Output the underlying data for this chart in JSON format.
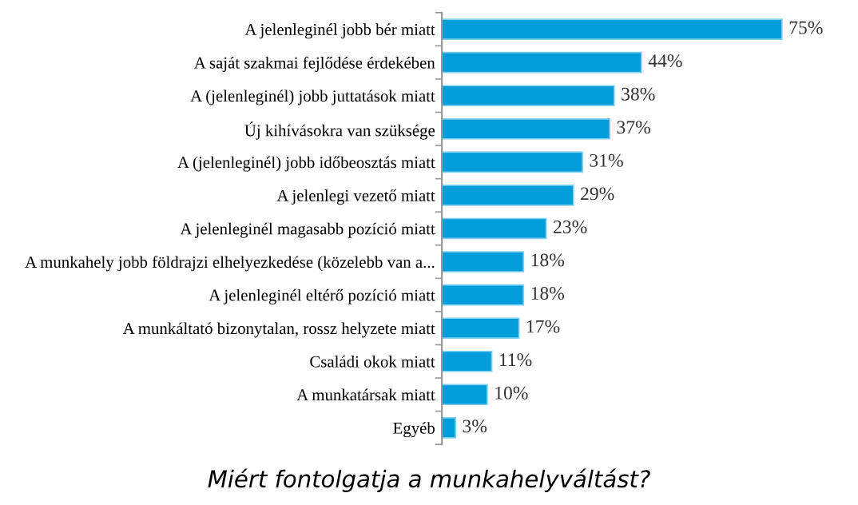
{
  "chart_data": {
    "type": "bar",
    "orientation": "horizontal",
    "title": "Miért fontolgatja a munkahelyváltást?",
    "categories": [
      "A jelenleginél jobb bér miatt",
      "A saját szakmai fejlődése érdekében",
      "A (jelenleginél) jobb juttatások miatt",
      "Új kihívásokra van szüksége",
      "A (jelenleginél) jobb időbeosztás miatt",
      "A jelenlegi vezető miatt",
      "A jelenleginél magasabb pozíció miatt",
      "A munkahely jobb földrajzi elhelyezkedése (közelebb van a...",
      "A jelenleginél eltérő pozíció miatt",
      "A munkáltató bizonytalan, rossz helyzete miatt",
      "Családi okok miatt",
      "A munkatársak miatt",
      "Egyéb"
    ],
    "values": [
      75,
      44,
      38,
      37,
      31,
      29,
      23,
      18,
      18,
      17,
      11,
      10,
      3
    ],
    "value_labels": [
      "75%",
      "44%",
      "38%",
      "37%",
      "31%",
      "29%",
      "23%",
      "18%",
      "18%",
      "17%",
      "11%",
      "10%",
      "3%"
    ],
    "color": "#009ddb",
    "grid": false,
    "legend": false
  }
}
